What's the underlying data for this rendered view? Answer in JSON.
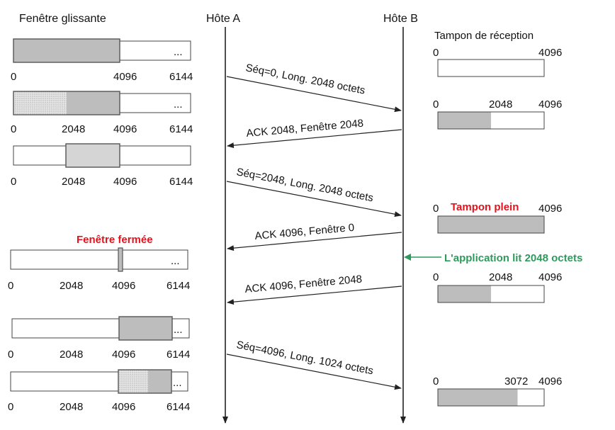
{
  "headers": {
    "window": "Fenêtre glissante",
    "host_a": "Hôte A",
    "host_b": "Hôte B",
    "buffer": "Tampon de réception"
  },
  "colors": {
    "sent_unacked": "#bdbdbd",
    "sent_hatched": "#e2e2e2",
    "window_border": "#555555",
    "alert_red": "#e0141e",
    "note_green": "#2e9a5c",
    "line": "#222222"
  },
  "messages": {
    "m1": "Séq=0, Long. 2048 octets",
    "m2": "ACK 2048, Fenêtre 2048",
    "m3": "Séq=2048, Long. 2048 octets",
    "m4": "ACK 4096, Fenêtre 0",
    "m5": "ACK 4096, Fenêtre 2048",
    "m6": "Séq=4096, Long. 1024 octets"
  },
  "notes": {
    "window_closed": "Fenêtre fermée",
    "buffer_full": "Tampon plein",
    "app_reads": "L'application lit 2048 octets"
  },
  "window_rows": [
    {
      "labels": [
        "0",
        "4096",
        "6144"
      ],
      "dots": "..."
    },
    {
      "labels": [
        "0",
        "2048",
        "4096",
        "6144"
      ],
      "dots": "..."
    },
    {
      "labels": [
        "0",
        "2048",
        "4096",
        "6144"
      ],
      "dots": "..."
    },
    {
      "labels": [
        "0",
        "2048",
        "4096",
        "6144"
      ],
      "dots": "..."
    },
    {
      "labels": [
        "0",
        "2048",
        "4096",
        "6144"
      ],
      "dots": "..."
    },
    {
      "labels": [
        "0",
        "2048",
        "4096",
        "6144"
      ],
      "dots": "..."
    }
  ],
  "buffers": [
    {
      "labels": [
        "0",
        "4096"
      ],
      "fill_fraction": 0.0
    },
    {
      "labels": [
        "0",
        "2048",
        "4096"
      ],
      "fill_fraction": 0.5
    },
    {
      "labels": [
        "0",
        "4096"
      ],
      "fill_fraction": 1.0
    },
    {
      "labels": [
        "0",
        "2048",
        "4096"
      ],
      "fill_fraction": 0.5
    },
    {
      "labels": [
        "0",
        "3072",
        "4096"
      ],
      "fill_fraction": 0.75
    }
  ]
}
